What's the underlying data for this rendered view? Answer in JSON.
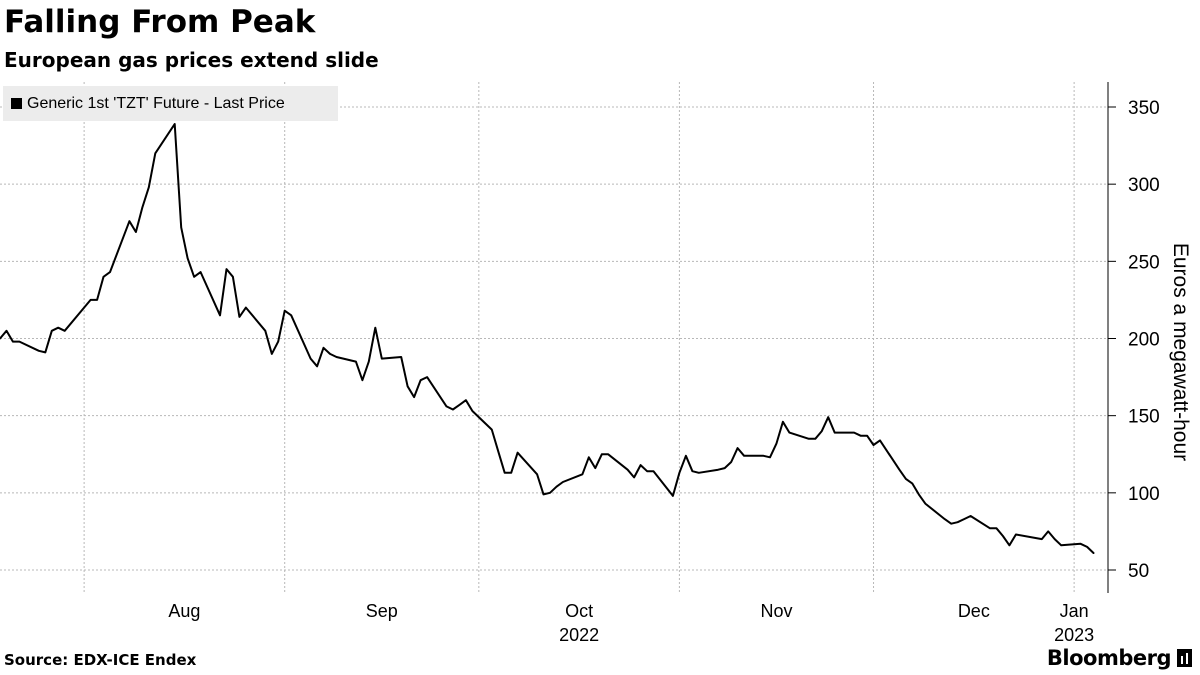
{
  "header": {
    "title": "Falling From Peak",
    "subtitle": "European gas prices extend slide"
  },
  "legend": {
    "label": "Generic 1st 'TZT' Future - Last Price"
  },
  "footer": {
    "source": "Source: EDX-ICE Endex",
    "brand": "Bloomberg"
  },
  "colors": {
    "line": "#000000",
    "grid": "#b8b8b8",
    "legend_bg": "#ececec"
  },
  "chart_data": {
    "type": "line",
    "title": "Falling From Peak",
    "subtitle": "European gas prices extend slide",
    "ylabel": "Euros a megawatt-hour",
    "ylim": [
      35,
      365
    ],
    "yticks": [
      50,
      100,
      150,
      200,
      250,
      300,
      350
    ],
    "y_axis_side": "right",
    "grid": true,
    "legend_position": "top-left",
    "xlim": [
      "2022-07-19",
      "2023-01-05"
    ],
    "xticks": [
      {
        "date": "2022-08-01",
        "label": "Aug",
        "sublabel": ""
      },
      {
        "date": "2022-09-01",
        "label": "Sep",
        "sublabel": ""
      },
      {
        "date": "2022-10-01",
        "label": "Oct",
        "sublabel": "2022"
      },
      {
        "date": "2022-11-01",
        "label": "Nov",
        "sublabel": ""
      },
      {
        "date": "2022-12-01",
        "label": "Dec",
        "sublabel": ""
      },
      {
        "date": "2023-01-01",
        "label": "Jan",
        "sublabel": "2023"
      }
    ],
    "series": [
      {
        "name": "Generic 1st 'TZT' Future - Last Price",
        "points": [
          [
            "2022-07-19",
            200
          ],
          [
            "2022-07-20",
            205
          ],
          [
            "2022-07-21",
            198
          ],
          [
            "2022-07-22",
            198
          ],
          [
            "2022-07-25",
            192
          ],
          [
            "2022-07-26",
            191
          ],
          [
            "2022-07-27",
            205
          ],
          [
            "2022-07-28",
            207
          ],
          [
            "2022-07-29",
            205
          ],
          [
            "2022-08-01",
            220
          ],
          [
            "2022-08-02",
            225
          ],
          [
            "2022-08-03",
            225
          ],
          [
            "2022-08-04",
            240
          ],
          [
            "2022-08-05",
            243
          ],
          [
            "2022-08-08",
            276
          ],
          [
            "2022-08-09",
            269
          ],
          [
            "2022-08-10",
            285
          ],
          [
            "2022-08-11",
            298
          ],
          [
            "2022-08-12",
            320
          ],
          [
            "2022-08-15",
            339
          ],
          [
            "2022-08-16",
            272
          ],
          [
            "2022-08-17",
            252
          ],
          [
            "2022-08-18",
            240
          ],
          [
            "2022-08-19",
            243
          ],
          [
            "2022-08-22",
            215
          ],
          [
            "2022-08-23",
            245
          ],
          [
            "2022-08-24",
            240
          ],
          [
            "2022-08-25",
            214
          ],
          [
            "2022-08-26",
            220
          ],
          [
            "2022-08-29",
            205
          ],
          [
            "2022-08-30",
            190
          ],
          [
            "2022-08-31",
            198
          ],
          [
            "2022-09-01",
            218
          ],
          [
            "2022-09-02",
            215
          ],
          [
            "2022-09-05",
            187
          ],
          [
            "2022-09-06",
            182
          ],
          [
            "2022-09-07",
            194
          ],
          [
            "2022-09-08",
            190
          ],
          [
            "2022-09-09",
            188
          ],
          [
            "2022-09-12",
            185
          ],
          [
            "2022-09-13",
            173
          ],
          [
            "2022-09-14",
            185
          ],
          [
            "2022-09-15",
            207
          ],
          [
            "2022-09-16",
            187
          ],
          [
            "2022-09-19",
            188
          ],
          [
            "2022-09-20",
            169
          ],
          [
            "2022-09-21",
            162
          ],
          [
            "2022-09-22",
            173
          ],
          [
            "2022-09-23",
            175
          ],
          [
            "2022-09-26",
            156
          ],
          [
            "2022-09-27",
            154
          ],
          [
            "2022-09-28",
            157
          ],
          [
            "2022-09-29",
            160
          ],
          [
            "2022-09-30",
            153
          ],
          [
            "2022-10-03",
            141
          ],
          [
            "2022-10-04",
            127
          ],
          [
            "2022-10-05",
            113
          ],
          [
            "2022-10-06",
            113
          ],
          [
            "2022-10-07",
            126
          ],
          [
            "2022-10-10",
            112
          ],
          [
            "2022-10-11",
            99
          ],
          [
            "2022-10-12",
            100
          ],
          [
            "2022-10-13",
            104
          ],
          [
            "2022-10-14",
            107
          ],
          [
            "2022-10-17",
            112
          ],
          [
            "2022-10-18",
            123
          ],
          [
            "2022-10-19",
            116
          ],
          [
            "2022-10-20",
            125
          ],
          [
            "2022-10-21",
            125
          ],
          [
            "2022-10-24",
            115
          ],
          [
            "2022-10-25",
            110
          ],
          [
            "2022-10-26",
            118
          ],
          [
            "2022-10-27",
            114
          ],
          [
            "2022-10-28",
            114
          ],
          [
            "2022-10-31",
            98
          ],
          [
            "2022-11-01",
            113
          ],
          [
            "2022-11-02",
            124
          ],
          [
            "2022-11-03",
            114
          ],
          [
            "2022-11-04",
            113
          ],
          [
            "2022-11-07",
            115
          ],
          [
            "2022-11-08",
            116
          ],
          [
            "2022-11-09",
            120
          ],
          [
            "2022-11-10",
            129
          ],
          [
            "2022-11-11",
            124
          ],
          [
            "2022-11-14",
            124
          ],
          [
            "2022-11-15",
            123
          ],
          [
            "2022-11-16",
            132
          ],
          [
            "2022-11-17",
            146
          ],
          [
            "2022-11-18",
            139
          ],
          [
            "2022-11-21",
            135
          ],
          [
            "2022-11-22",
            135
          ],
          [
            "2022-11-23",
            140
          ],
          [
            "2022-11-24",
            149
          ],
          [
            "2022-11-25",
            139
          ],
          [
            "2022-11-28",
            139
          ],
          [
            "2022-11-29",
            137
          ],
          [
            "2022-11-30",
            137
          ],
          [
            "2022-12-01",
            131
          ],
          [
            "2022-12-02",
            134
          ],
          [
            "2022-12-05",
            115
          ],
          [
            "2022-12-06",
            109
          ],
          [
            "2022-12-07",
            106
          ],
          [
            "2022-12-08",
            99
          ],
          [
            "2022-12-09",
            93
          ],
          [
            "2022-12-12",
            83
          ],
          [
            "2022-12-13",
            80
          ],
          [
            "2022-12-14",
            81
          ],
          [
            "2022-12-15",
            83
          ],
          [
            "2022-12-16",
            85
          ],
          [
            "2022-12-19",
            77
          ],
          [
            "2022-12-20",
            77
          ],
          [
            "2022-12-21",
            72
          ],
          [
            "2022-12-22",
            66
          ],
          [
            "2022-12-23",
            73
          ],
          [
            "2022-12-27",
            70
          ],
          [
            "2022-12-28",
            75
          ],
          [
            "2022-12-29",
            70
          ],
          [
            "2022-12-30",
            66
          ],
          [
            "2023-01-02",
            67
          ],
          [
            "2023-01-03",
            65
          ],
          [
            "2023-01-04",
            61
          ]
        ]
      }
    ]
  }
}
